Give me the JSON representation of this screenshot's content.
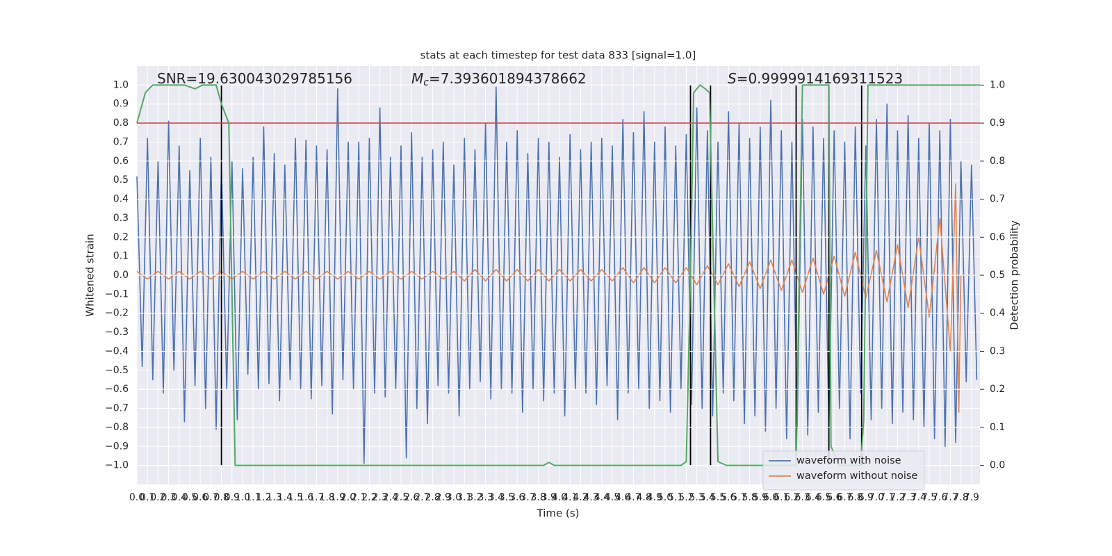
{
  "chart_data": {
    "type": "line",
    "title": "stats at each timestep for test data 833 [signal=1.0]",
    "x_label": "Time (s)",
    "y_label": "Whitened strain",
    "y2_label": "Detection probability",
    "annotations": [
      {
        "text": "SNR=19.630043029785156"
      },
      {
        "symbol": "M",
        "subscript": "c",
        "text": "=7.393601894378662"
      },
      {
        "symbol": "S",
        "text": "=0.9999914169311523"
      }
    ],
    "xlim": [
      0,
      7.98
    ],
    "ylim": [
      -1.1,
      1.1
    ],
    "y2lim": [
      -0.05,
      1.05
    ],
    "grid": true,
    "legend": "lower right",
    "xticks": [
      {
        "value": 0,
        "label": "0.0"
      },
      0.1,
      0.2,
      0.3,
      0.4,
      0.5,
      0.6,
      0.7,
      0.8,
      0.9,
      {
        "value": 1,
        "label": "1.0"
      },
      1.1,
      1.2,
      1.3,
      1.4,
      1.5,
      1.6,
      1.7,
      1.8,
      1.9,
      {
        "value": 2,
        "label": "2.0"
      },
      2.1,
      2.2,
      2.3,
      2.4,
      2.5,
      2.6,
      2.7,
      2.8,
      2.9,
      {
        "value": 3,
        "label": "3.0"
      },
      3.1,
      3.2,
      3.3,
      3.4,
      3.5,
      3.6,
      3.7,
      3.8,
      3.9,
      {
        "value": 4,
        "label": "4.0"
      },
      4.1,
      4.2,
      4.3,
      4.4,
      4.5,
      4.6,
      4.7,
      4.8,
      4.9,
      {
        "value": 5,
        "label": "5.0"
      },
      5.1,
      5.2,
      5.3,
      5.4,
      5.5,
      5.6,
      5.7,
      5.8,
      5.9,
      {
        "value": 6,
        "label": "6.0"
      },
      6.1,
      6.2,
      6.3,
      6.4,
      6.5,
      6.6,
      6.7,
      6.8,
      6.9,
      {
        "value": 7,
        "label": "7.0"
      },
      7.1,
      7.2,
      7.3,
      7.4,
      7.5,
      7.6,
      7.7,
      7.8,
      7.9
    ],
    "yticks": [
      {
        "value": -1,
        "label": "−1.0"
      },
      {
        "value": -0.9,
        "label": "−0.9"
      },
      {
        "value": -0.8,
        "label": "−0.8"
      },
      {
        "value": -0.7,
        "label": "−0.7"
      },
      {
        "value": -0.6,
        "label": "−0.6"
      },
      {
        "value": -0.5,
        "label": "−0.5"
      },
      {
        "value": -0.4,
        "label": "−0.4"
      },
      {
        "value": -0.3,
        "label": "−0.3"
      },
      {
        "value": -0.2,
        "label": "−0.2"
      },
      {
        "value": -0.1,
        "label": "−0.1"
      },
      {
        "value": 0,
        "label": "0.0"
      },
      0.1,
      0.2,
      0.3,
      0.4,
      0.5,
      0.6,
      0.7,
      0.8,
      0.9,
      {
        "value": 1,
        "label": "1.0"
      }
    ],
    "y2ticks": [
      {
        "value": 0,
        "label": "0.0"
      },
      0.1,
      0.2,
      0.3,
      0.4,
      0.5,
      0.6,
      0.7,
      0.8,
      0.9,
      {
        "value": 1,
        "label": "1.0"
      }
    ],
    "threshold": {
      "axis": "y2",
      "value": 0.9,
      "color": "#c44e52"
    },
    "vlines": {
      "x": [
        0.8,
        5.24,
        5.43,
        6.24,
        6.55,
        6.86
      ],
      "ymin": -1,
      "ymax": 1,
      "color": "#000000"
    },
    "series": [
      {
        "name": "waveform with noise",
        "color": "#4c72b0",
        "x": [
          0,
          0.05,
          0.1,
          0.15,
          0.2,
          0.25,
          0.3,
          0.35,
          0.4,
          0.45,
          0.5,
          0.55,
          0.6,
          0.65,
          0.7,
          0.75,
          0.8,
          0.85,
          0.9,
          0.95,
          1,
          1.05,
          1.1,
          1.15,
          1.2,
          1.25,
          1.3,
          1.35,
          1.4,
          1.45,
          1.5,
          1.55,
          1.6,
          1.65,
          1.7,
          1.75,
          1.8,
          1.85,
          1.9,
          1.95,
          2,
          2.05,
          2.1,
          2.15,
          2.2,
          2.25,
          2.3,
          2.35,
          2.4,
          2.45,
          2.5,
          2.55,
          2.6,
          2.65,
          2.7,
          2.75,
          2.8,
          2.85,
          2.9,
          2.95,
          3,
          3.05,
          3.1,
          3.15,
          3.2,
          3.25,
          3.3,
          3.35,
          3.4,
          3.45,
          3.5,
          3.55,
          3.6,
          3.65,
          3.7,
          3.75,
          3.8,
          3.85,
          3.9,
          3.95,
          4,
          4.05,
          4.1,
          4.15,
          4.2,
          4.25,
          4.3,
          4.35,
          4.4,
          4.45,
          4.5,
          4.55,
          4.6,
          4.65,
          4.7,
          4.75,
          4.8,
          4.85,
          4.9,
          4.95,
          5,
          5.05,
          5.1,
          5.15,
          5.2,
          5.25,
          5.3,
          5.35,
          5.4,
          5.45,
          5.5,
          5.55,
          5.6,
          5.65,
          5.7,
          5.75,
          5.8,
          5.85,
          5.9,
          5.95,
          6,
          6.05,
          6.1,
          6.15,
          6.2,
          6.25,
          6.3,
          6.35,
          6.4,
          6.45,
          6.5,
          6.55,
          6.6,
          6.65,
          6.7,
          6.75,
          6.8,
          6.85,
          6.9,
          6.95,
          7,
          7.05,
          7.1,
          7.15,
          7.2,
          7.25,
          7.3,
          7.35,
          7.4,
          7.45,
          7.5,
          7.55,
          7.6,
          7.65,
          7.7,
          7.75,
          7.8,
          7.85,
          7.9,
          7.95
        ],
        "values": [
          0.52,
          -0.48,
          0.72,
          -0.55,
          0.6,
          -0.62,
          0.81,
          -0.5,
          0.68,
          -0.77,
          0.55,
          -0.58,
          0.72,
          -0.7,
          0.62,
          -0.81,
          0.58,
          -0.6,
          0.6,
          -0.76,
          0.56,
          -0.52,
          0.62,
          -0.6,
          0.78,
          -0.57,
          0.64,
          -0.66,
          0.58,
          -0.55,
          0.72,
          -0.6,
          0.71,
          -0.65,
          0.68,
          -0.58,
          0.66,
          -0.73,
          0.98,
          -0.55,
          0.7,
          -0.6,
          0.7,
          -0.99,
          0.72,
          -0.62,
          0.88,
          -0.64,
          0.62,
          -0.6,
          0.68,
          -0.96,
          0.75,
          -0.7,
          0.62,
          -0.78,
          0.66,
          -0.58,
          0.7,
          -0.62,
          0.58,
          -0.74,
          0.72,
          -0.6,
          0.66,
          -0.56,
          0.8,
          -0.65,
          0.99,
          -0.6,
          0.7,
          -0.62,
          0.76,
          -0.72,
          0.64,
          -0.6,
          0.72,
          -0.66,
          0.7,
          -0.62,
          0.62,
          -0.74,
          0.74,
          -0.6,
          0.66,
          -0.62,
          0.7,
          -0.68,
          0.72,
          -0.58,
          0.68,
          -0.76,
          0.82,
          -0.62,
          0.75,
          -0.6,
          0.86,
          -0.7,
          0.7,
          -0.66,
          0.78,
          -0.72,
          0.68,
          -0.6,
          0.74,
          -0.68,
          0.88,
          -0.7,
          0.76,
          -0.74,
          0.7,
          -0.62,
          0.86,
          -0.66,
          0.8,
          -0.78,
          0.72,
          -0.74,
          0.78,
          -0.82,
          0.92,
          -0.7,
          0.76,
          -0.86,
          0.7,
          -0.8,
          0.82,
          -0.84,
          0.78,
          -0.72,
          0.72,
          -0.8,
          0.76,
          -0.7,
          0.7,
          -0.86,
          0.78,
          -0.62,
          0.68,
          -0.76,
          0.82,
          -0.7,
          0.9,
          -0.78,
          0.76,
          -0.72,
          0.84,
          -0.76,
          0.72,
          -0.8,
          0.8,
          -0.86,
          0.76,
          -0.9,
          0.82,
          -0.88,
          0.6,
          -0.56,
          0.58,
          -0.55
        ]
      },
      {
        "name": "waveform without noise",
        "color": "#dd8452",
        "x": [
          0,
          0.1,
          0.2,
          0.3,
          0.4,
          0.5,
          0.6,
          0.7,
          0.8,
          0.9,
          1,
          1.1,
          1.2,
          1.3,
          1.4,
          1.5,
          1.6,
          1.7,
          1.8,
          1.9,
          2,
          2.1,
          2.2,
          2.3,
          2.4,
          2.5,
          2.6,
          2.7,
          2.8,
          2.9,
          3,
          3.1,
          3.2,
          3.3,
          3.4,
          3.5,
          3.6,
          3.7,
          3.8,
          3.9,
          4,
          4.1,
          4.2,
          4.3,
          4.4,
          4.5,
          4.6,
          4.7,
          4.8,
          4.9,
          5,
          5.1,
          5.2,
          5.3,
          5.4,
          5.5,
          5.6,
          5.7,
          5.8,
          5.9,
          6,
          6.1,
          6.2,
          6.3,
          6.4,
          6.5,
          6.6,
          6.7,
          6.8,
          6.9,
          7,
          7.1,
          7.2,
          7.3,
          7.4,
          7.5,
          7.6,
          7.7,
          7.75,
          7.78,
          7.8,
          7.98
        ],
        "values": [
          0.02,
          -0.02,
          0.02,
          -0.02,
          0.02,
          -0.02,
          0.02,
          -0.02,
          0.02,
          -0.02,
          0.02,
          -0.02,
          0.02,
          -0.02,
          0.02,
          -0.02,
          0.02,
          -0.02,
          0.02,
          -0.02,
          0.02,
          -0.02,
          0.02,
          -0.02,
          0.02,
          -0.02,
          0.02,
          -0.02,
          0.02,
          -0.02,
          0.02,
          -0.03,
          0.03,
          -0.03,
          0.03,
          -0.03,
          0.03,
          -0.03,
          0.03,
          -0.03,
          0.03,
          -0.03,
          0.03,
          -0.03,
          0.03,
          -0.03,
          0.04,
          -0.04,
          0.04,
          -0.04,
          0.04,
          -0.04,
          0.04,
          -0.05,
          0.05,
          -0.05,
          0.06,
          -0.06,
          0.07,
          -0.07,
          0.08,
          -0.08,
          0.08,
          -0.09,
          0.09,
          -0.1,
          0.1,
          -0.11,
          0.12,
          -0.12,
          0.13,
          -0.14,
          0.16,
          -0.17,
          0.2,
          -0.22,
          0.3,
          -0.4,
          0.48,
          -0.72,
          0,
          0
        ]
      },
      {
        "axis": "y2",
        "color": "#55a868",
        "x": [
          0,
          0.08,
          0.15,
          0.45,
          0.55,
          0.62,
          0.75,
          0.8,
          0.87,
          0.93,
          3.85,
          3.9,
          3.95,
          5.15,
          5.2,
          5.24,
          5.27,
          5.33,
          5.38,
          5.42,
          5.5,
          5.58,
          6.24,
          6.27,
          6.3,
          6.55,
          6.57,
          6.65,
          6.85,
          6.88,
          6.92,
          7.98
        ],
        "values": [
          0.9,
          0.98,
          1,
          1,
          0.99,
          1,
          1,
          0.95,
          0.9,
          0,
          0,
          0.008,
          0,
          0,
          0.01,
          0.5,
          0.98,
          1,
          0.99,
          0.98,
          0.01,
          0,
          0,
          0.5,
          1,
          1,
          0.05,
          0,
          0,
          0.12,
          1,
          1
        ]
      }
    ]
  }
}
